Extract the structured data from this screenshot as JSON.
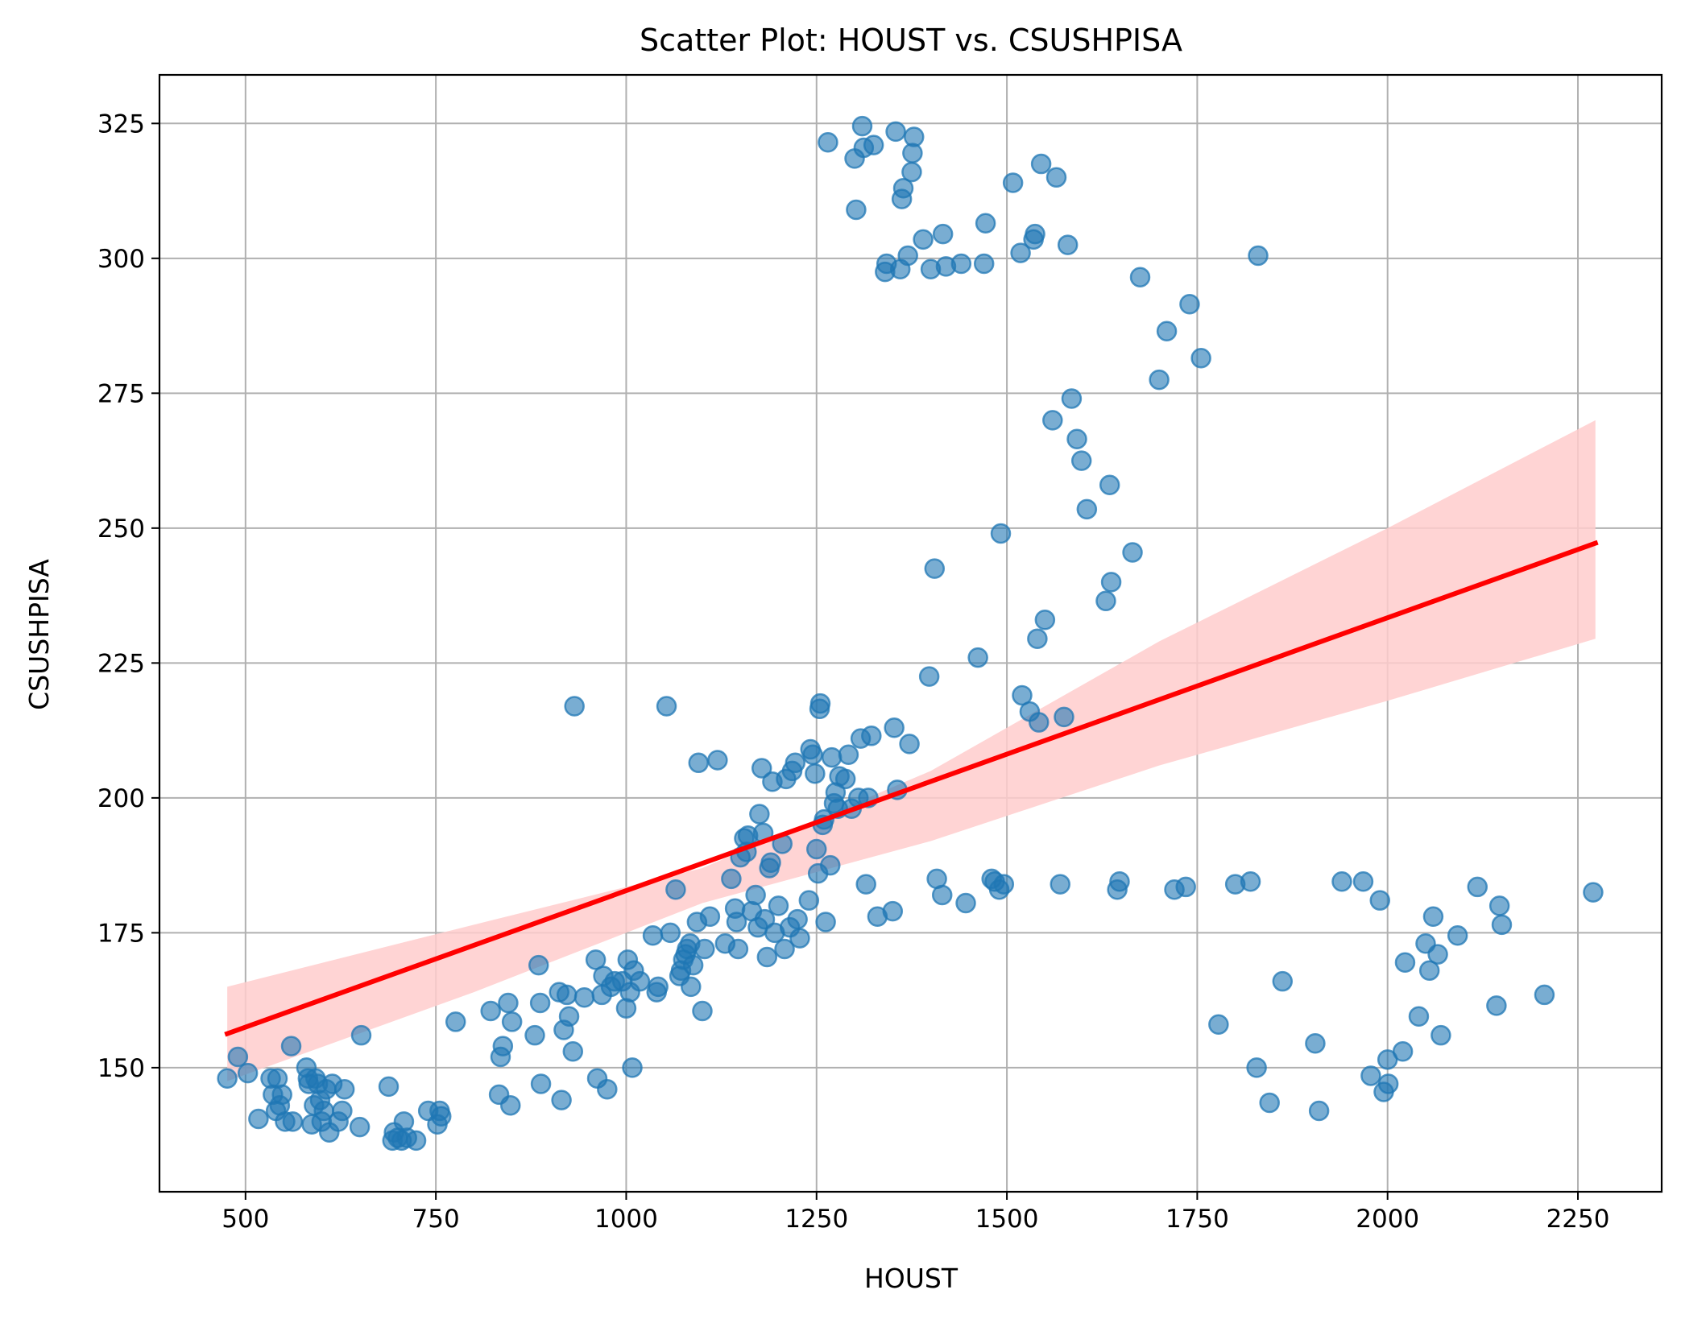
{
  "chart_data": {
    "type": "scatter",
    "title": "Scatter Plot: HOUST vs. CSUSHPISA",
    "xlabel": "HOUST",
    "ylabel": "CSUSHPISA",
    "xlim": [
      387,
      2360
    ],
    "ylim": [
      127,
      334
    ],
    "xticks": [
      500,
      750,
      1000,
      1250,
      1500,
      1750,
      2000,
      2250
    ],
    "yticks": [
      150,
      175,
      200,
      225,
      250,
      275,
      300,
      325
    ],
    "grid": true,
    "colors": {
      "points": "#1f77b4",
      "regression_line": "#ff0000",
      "confidence_band": "#ffcccc"
    },
    "regression": {
      "x": [
        476,
        2273
      ],
      "y": [
        156.3,
        247.2
      ],
      "ci_x": [
        476,
        800,
        1100,
        1400,
        1700,
        2000,
        2273
      ],
      "ci_upper": [
        165.0,
        176.5,
        187.0,
        205.0,
        229.0,
        250.0,
        270.0
      ],
      "ci_lower": [
        147.5,
        164.0,
        180.5,
        192.0,
        206.0,
        218.0,
        229.5
      ]
    },
    "points": [
      [
        476,
        148
      ],
      [
        490,
        152
      ],
      [
        503,
        149
      ],
      [
        517,
        140.5
      ],
      [
        533,
        148
      ],
      [
        536,
        145
      ],
      [
        540,
        142
      ],
      [
        542,
        148
      ],
      [
        545,
        143
      ],
      [
        548,
        145
      ],
      [
        552,
        140
      ],
      [
        560,
        154
      ],
      [
        562,
        140
      ],
      [
        580,
        150
      ],
      [
        582,
        148
      ],
      [
        583,
        147
      ],
      [
        587,
        139.5
      ],
      [
        590,
        143
      ],
      [
        592,
        148
      ],
      [
        595,
        147
      ],
      [
        598,
        144
      ],
      [
        600,
        140
      ],
      [
        603,
        142
      ],
      [
        606,
        146
      ],
      [
        610,
        138
      ],
      [
        614,
        147
      ],
      [
        622,
        140
      ],
      [
        627,
        142
      ],
      [
        630,
        146
      ],
      [
        650,
        139
      ],
      [
        652,
        156
      ],
      [
        688,
        146.5
      ],
      [
        693,
        136.5
      ],
      [
        695,
        138
      ],
      [
        700,
        137
      ],
      [
        705,
        136.5
      ],
      [
        708,
        140
      ],
      [
        712,
        137
      ],
      [
        724,
        136.5
      ],
      [
        740,
        142
      ],
      [
        752,
        139.5
      ],
      [
        755,
        142
      ],
      [
        757,
        141
      ],
      [
        776,
        158.5
      ],
      [
        822,
        160.5
      ],
      [
        833,
        145
      ],
      [
        835,
        152
      ],
      [
        838,
        154
      ],
      [
        845,
        162
      ],
      [
        848,
        143
      ],
      [
        850,
        158.5
      ],
      [
        880,
        156
      ],
      [
        885,
        169
      ],
      [
        887,
        162
      ],
      [
        888,
        147
      ],
      [
        912,
        164
      ],
      [
        915,
        144
      ],
      [
        918,
        157
      ],
      [
        922,
        163.5
      ],
      [
        925,
        159.5
      ],
      [
        930,
        153
      ],
      [
        932,
        217
      ],
      [
        945,
        163
      ],
      [
        960,
        170
      ],
      [
        962,
        148
      ],
      [
        968,
        163.5
      ],
      [
        970,
        167
      ],
      [
        975,
        146
      ],
      [
        980,
        165
      ],
      [
        985,
        166
      ],
      [
        995,
        166
      ],
      [
        1000,
        161
      ],
      [
        1002,
        170
      ],
      [
        1005,
        164
      ],
      [
        1008,
        150
      ],
      [
        1010,
        168
      ],
      [
        1018,
        166
      ],
      [
        1035,
        174.5
      ],
      [
        1040,
        164
      ],
      [
        1042,
        165
      ],
      [
        1053,
        217
      ],
      [
        1058,
        175
      ],
      [
        1065,
        183
      ],
      [
        1070,
        167
      ],
      [
        1072,
        168
      ],
      [
        1075,
        170
      ],
      [
        1078,
        171
      ],
      [
        1080,
        172
      ],
      [
        1084,
        173
      ],
      [
        1085,
        165
      ],
      [
        1088,
        169
      ],
      [
        1093,
        177
      ],
      [
        1095,
        206.5
      ],
      [
        1100,
        160.5
      ],
      [
        1103,
        172
      ],
      [
        1110,
        178
      ],
      [
        1120,
        207
      ],
      [
        1130,
        173
      ],
      [
        1138,
        185
      ],
      [
        1143,
        179.5
      ],
      [
        1145,
        177
      ],
      [
        1147,
        172
      ],
      [
        1150,
        189
      ],
      [
        1155,
        192.5
      ],
      [
        1158,
        190
      ],
      [
        1160,
        193
      ],
      [
        1165,
        179
      ],
      [
        1170,
        182
      ],
      [
        1173,
        176
      ],
      [
        1175,
        197
      ],
      [
        1178,
        205.5
      ],
      [
        1180,
        193.5
      ],
      [
        1182,
        177.5
      ],
      [
        1185,
        170.5
      ],
      [
        1188,
        187
      ],
      [
        1190,
        188
      ],
      [
        1192,
        203
      ],
      [
        1195,
        175
      ],
      [
        1200,
        180
      ],
      [
        1205,
        191.5
      ],
      [
        1208,
        172
      ],
      [
        1210,
        203.5
      ],
      [
        1215,
        176
      ],
      [
        1218,
        205
      ],
      [
        1222,
        206.5
      ],
      [
        1225,
        177.5
      ],
      [
        1228,
        174
      ],
      [
        1240,
        181
      ],
      [
        1242,
        209
      ],
      [
        1245,
        208
      ],
      [
        1248,
        204.5
      ],
      [
        1250,
        190.5
      ],
      [
        1252,
        186
      ],
      [
        1254,
        216.5
      ],
      [
        1255,
        217.5
      ],
      [
        1258,
        195
      ],
      [
        1260,
        196
      ],
      [
        1262,
        177
      ],
      [
        1265,
        321.5
      ],
      [
        1268,
        187.5
      ],
      [
        1270,
        207.5
      ],
      [
        1273,
        199
      ],
      [
        1275,
        201
      ],
      [
        1278,
        198
      ],
      [
        1280,
        204
      ],
      [
        1288,
        203.5
      ],
      [
        1292,
        208
      ],
      [
        1296,
        198
      ],
      [
        1300,
        318.5
      ],
      [
        1302,
        309
      ],
      [
        1305,
        200
      ],
      [
        1308,
        211
      ],
      [
        1310,
        324.5
      ],
      [
        1312,
        320.5
      ],
      [
        1315,
        184
      ],
      [
        1318,
        200
      ],
      [
        1322,
        211.5
      ],
      [
        1325,
        321
      ],
      [
        1330,
        178
      ],
      [
        1340,
        297.5
      ],
      [
        1342,
        299
      ],
      [
        1350,
        179
      ],
      [
        1352,
        213
      ],
      [
        1354,
        323.5
      ],
      [
        1356,
        201.5
      ],
      [
        1360,
        298
      ],
      [
        1362,
        311
      ],
      [
        1364,
        313
      ],
      [
        1370,
        300.5
      ],
      [
        1372,
        210
      ],
      [
        1375,
        316
      ],
      [
        1376,
        319.5
      ],
      [
        1378,
        322.5
      ],
      [
        1390,
        303.5
      ],
      [
        1398,
        222.5
      ],
      [
        1400,
        298
      ],
      [
        1405,
        242.5
      ],
      [
        1408,
        185
      ],
      [
        1415,
        182
      ],
      [
        1416,
        304.5
      ],
      [
        1420,
        298.5
      ],
      [
        1446,
        180.5
      ],
      [
        1440,
        299
      ],
      [
        1462,
        226
      ],
      [
        1470,
        299
      ],
      [
        1472,
        306.5
      ],
      [
        1480,
        185
      ],
      [
        1484,
        184.5
      ],
      [
        1490,
        183
      ],
      [
        1492,
        249
      ],
      [
        1496,
        184
      ],
      [
        1508,
        314
      ],
      [
        1518,
        301
      ],
      [
        1520,
        219
      ],
      [
        1530,
        216
      ],
      [
        1535,
        303.5
      ],
      [
        1537,
        304.5
      ],
      [
        1540,
        229.5
      ],
      [
        1542,
        214
      ],
      [
        1545,
        317.5
      ],
      [
        1550,
        233
      ],
      [
        1560,
        270
      ],
      [
        1565,
        315
      ],
      [
        1570,
        184
      ],
      [
        1575,
        215
      ],
      [
        1580,
        302.5
      ],
      [
        1585,
        274
      ],
      [
        1592,
        266.5
      ],
      [
        1598,
        262.5
      ],
      [
        1605,
        253.5
      ],
      [
        1630,
        236.5
      ],
      [
        1635,
        258
      ],
      [
        1637,
        240
      ],
      [
        1645,
        183
      ],
      [
        1648,
        184.5
      ],
      [
        1665,
        245.5
      ],
      [
        1675,
        296.5
      ],
      [
        1700,
        277.5
      ],
      [
        1710,
        286.5
      ],
      [
        1720,
        183
      ],
      [
        1735,
        183.5
      ],
      [
        1740,
        291.5
      ],
      [
        1755,
        281.5
      ],
      [
        1778,
        158
      ],
      [
        1800,
        184
      ],
      [
        1820,
        184.5
      ],
      [
        1828,
        150
      ],
      [
        1830,
        300.5
      ],
      [
        1845,
        143.5
      ],
      [
        1862,
        166
      ],
      [
        1905,
        154.5
      ],
      [
        1910,
        142
      ],
      [
        1940,
        184.5
      ],
      [
        1968,
        184.5
      ],
      [
        1978,
        148.5
      ],
      [
        1990,
        181
      ],
      [
        1995,
        145.5
      ],
      [
        2000,
        151.5
      ],
      [
        2001,
        147
      ],
      [
        2020,
        153
      ],
      [
        2023,
        169.5
      ],
      [
        2041,
        159.5
      ],
      [
        2050,
        173
      ],
      [
        2055,
        168
      ],
      [
        2060,
        178
      ],
      [
        2066,
        171
      ],
      [
        2070,
        156
      ],
      [
        2092,
        174.5
      ],
      [
        2118,
        183.5
      ],
      [
        2143,
        161.5
      ],
      [
        2147,
        180
      ],
      [
        2150,
        176.5
      ],
      [
        2206,
        163.5
      ],
      [
        2270,
        182.5
      ]
    ]
  }
}
